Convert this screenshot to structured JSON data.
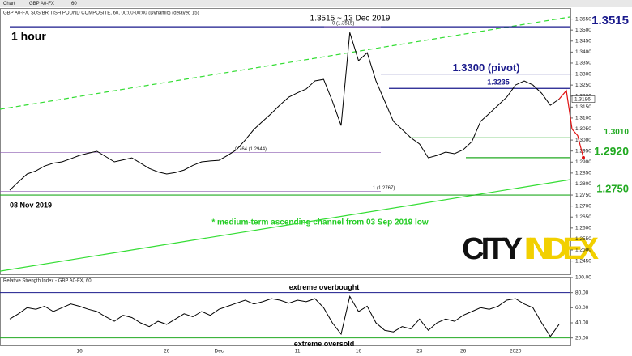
{
  "toolbar": {
    "tab": "Chart",
    "symbol": "GBP A0-FX",
    "interval": "60"
  },
  "brand": [
    "CITY",
    "INDEX"
  ],
  "chart_data": [
    {
      "type": "line",
      "title": "GBP A0-FX, $US/BRITISH POUND COMPOSITE, 60, 00:00-00:00 (Dynamic) (delayed 15)",
      "timeframe": "1 hour",
      "peak_label": "1.3515 ~ 13 Dec 2019",
      "start_label": "08 Nov 2019",
      "channel_note": "* medium-term ascending channel from 03 Sep 2019 low",
      "categories": [
        null,
        null,
        null,
        null,
        null,
        null,
        null,
        null,
        "16",
        null,
        null,
        null,
        null,
        null,
        null,
        null,
        null,
        null,
        "26",
        null,
        null,
        null,
        null,
        null,
        "Dec",
        null,
        null,
        null,
        null,
        null,
        null,
        null,
        null,
        "11",
        null,
        null,
        null,
        null,
        null,
        null,
        "16",
        null,
        null,
        null,
        null,
        null,
        null,
        "23",
        null,
        null,
        null,
        null,
        "26",
        null,
        null,
        null,
        null,
        null,
        "2020",
        null,
        null,
        null,
        null,
        null
      ],
      "series": [
        {
          "name": "GBP A0-FX",
          "color": "#000000",
          "values": [
            1.2772,
            1.281,
            1.2846,
            1.286,
            1.2882,
            1.2895,
            1.2901,
            1.2915,
            1.293,
            1.294,
            1.2949,
            1.2925,
            1.2901,
            1.291,
            1.2919,
            1.2895,
            1.2871,
            1.2855,
            1.2846,
            1.2852,
            1.2864,
            1.2885,
            1.2901,
            1.2905,
            1.2908,
            1.293,
            1.2956,
            1.3,
            1.3048,
            1.3085,
            1.3121,
            1.316,
            1.3195,
            1.3215,
            1.3232,
            1.3269,
            1.3276,
            1.3177,
            1.3066,
            1.3489,
            1.3361,
            1.3397,
            1.3269,
            1.3177,
            1.3085,
            1.3048,
            1.3011,
            1.2982,
            1.2919,
            1.293,
            1.2945,
            1.2938,
            1.2956,
            1.2993,
            1.3085,
            1.3121,
            1.3158,
            1.3195,
            1.325,
            1.3269,
            1.325,
            1.3213,
            1.3158,
            1.3186
          ]
        }
      ],
      "last_price": 1.3186,
      "ylim": [
        1.2386,
        1.36
      ],
      "yticks": [
        {
          "value": 1.355,
          "label": "1.3550"
        },
        {
          "value": 1.35,
          "label": "1.3500"
        },
        {
          "value": 1.345,
          "label": "1.3450"
        },
        {
          "value": 1.34,
          "label": "1.3400"
        },
        {
          "value": 1.335,
          "label": "1.3350"
        },
        {
          "value": 1.33,
          "label": "1.3300"
        },
        {
          "value": 1.325,
          "label": "1.3250"
        },
        {
          "value": 1.32,
          "label": "1.3200"
        },
        {
          "value": 1.315,
          "label": "1.3150"
        },
        {
          "value": 1.31,
          "label": "1.3100"
        },
        {
          "value": 1.305,
          "label": "1.3050"
        },
        {
          "value": 1.3,
          "label": "1.3000"
        },
        {
          "value": 1.295,
          "label": "1.2950"
        },
        {
          "value": 1.29,
          "label": "1.2900"
        },
        {
          "value": 1.285,
          "label": "1.2850"
        },
        {
          "value": 1.28,
          "label": "1.2800"
        },
        {
          "value": 1.275,
          "label": "1.2750"
        },
        {
          "value": 1.27,
          "label": "1.2700"
        },
        {
          "value": 1.265,
          "label": "1.2650"
        },
        {
          "value": 1.26,
          "label": "1.2600"
        },
        {
          "value": 1.255,
          "label": "1.2550"
        },
        {
          "value": 1.25,
          "label": "1.2500"
        },
        {
          "value": 1.245,
          "label": "1.2450"
        }
      ],
      "levels": [
        {
          "value": 1.3515,
          "label": "1.3515",
          "color": "#1a1a8c"
        },
        {
          "value": 1.33,
          "label": "1.3300 (pivot)",
          "color": "#1a1a8c"
        },
        {
          "value": 1.3235,
          "label": "1.3235",
          "color": "#1a1a8c"
        },
        {
          "value": 1.301,
          "label": "1.3010",
          "color": "#22aa22"
        },
        {
          "value": 1.292,
          "label": "1.2920",
          "color": "#22aa22"
        },
        {
          "value": 1.275,
          "label": "1.2750",
          "color": "#22aa22"
        }
      ],
      "fib": [
        {
          "value": 1.3515,
          "label": "0 (1.3515)"
        },
        {
          "value": 1.2944,
          "label": "0.764 (1.2944)"
        },
        {
          "value": 1.2767,
          "label": "1 (1.2767)"
        }
      ],
      "channel": {
        "color": "#33dd33",
        "upper": [
          1.314,
          1.356
        ],
        "lower": [
          1.2404,
          1.282
        ]
      },
      "projection": {
        "color": "#e01010",
        "values": [
          1.3225,
          1.305,
          1.302,
          1.292
        ]
      }
    },
    {
      "type": "line",
      "title": "Relative Strength Index - GBP A0-FX, 60",
      "series": [
        {
          "name": "RSI",
          "color": "#000000",
          "values": [
            45,
            52,
            60,
            58,
            62,
            55,
            60,
            65,
            62,
            58,
            55,
            48,
            42,
            50,
            47,
            40,
            35,
            42,
            38,
            45,
            52,
            48,
            55,
            50,
            58,
            62,
            66,
            70,
            65,
            68,
            72,
            70,
            66,
            70,
            68,
            72,
            60,
            40,
            25,
            75,
            55,
            62,
            40,
            30,
            28,
            35,
            32,
            45,
            30,
            40,
            45,
            42,
            50,
            55,
            60,
            58,
            62,
            70,
            72,
            65,
            60,
            40,
            22,
            38
          ]
        }
      ],
      "ylim": [
        10,
        100
      ],
      "yticks": [
        {
          "value": 100,
          "label": "100.00"
        },
        {
          "value": 80,
          "label": "80.00"
        },
        {
          "value": 60,
          "label": "60.00"
        },
        {
          "value": 40,
          "label": "40.00"
        },
        {
          "value": 20,
          "label": "20.00"
        }
      ],
      "levels": [
        {
          "value": 80,
          "label": "extreme overbought",
          "color": "#1a1a8c"
        },
        {
          "value": 20,
          "label": "extreme oversold",
          "color": "#22aa22"
        }
      ]
    }
  ]
}
